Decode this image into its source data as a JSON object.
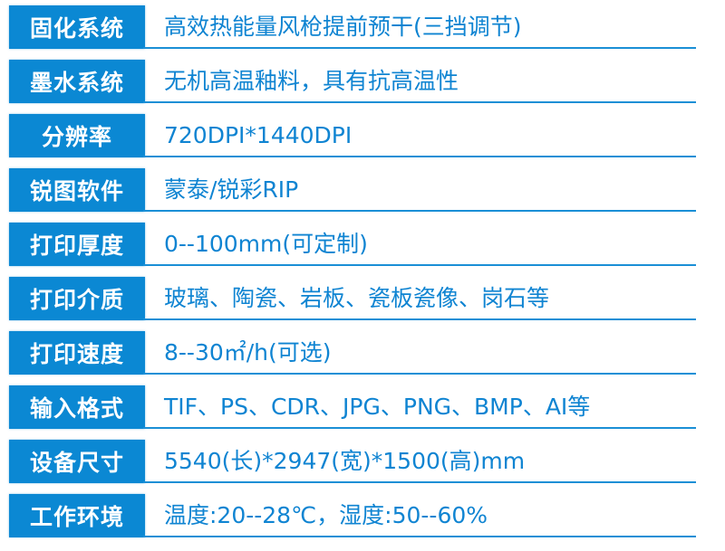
{
  "colors": {
    "label_bg": "#0b88d3",
    "value_text": "#0f84d2",
    "divider": "#1a8fd6"
  },
  "rows": [
    {
      "label": "固化系统",
      "value": "高效热能量风枪提前预干(三挡调节)"
    },
    {
      "label": "墨水系统",
      "value": "无机高温釉料，具有抗高温性"
    },
    {
      "label": "分辨率",
      "value": "720DPI*1440DPI"
    },
    {
      "label": "锐图软件",
      "value": "蒙泰/锐彩RIP"
    },
    {
      "label": "打印厚度",
      "value": "0--100mm(可定制)"
    },
    {
      "label": "打印介质",
      "value": "玻璃、陶瓷、岩板、瓷板瓷像、岗石等"
    },
    {
      "label": "打印速度",
      "value": "8--30㎡/h(可选)"
    },
    {
      "label": "输入格式",
      "value": "TIF、PS、CDR、JPG、PNG、BMP、AI等"
    },
    {
      "label": "设备尺寸",
      "value": "5540(长)*2947(宽)*1500(高)mm"
    },
    {
      "label": "工作环境",
      "value": "温度:20--28℃，湿度:50--60%"
    }
  ]
}
